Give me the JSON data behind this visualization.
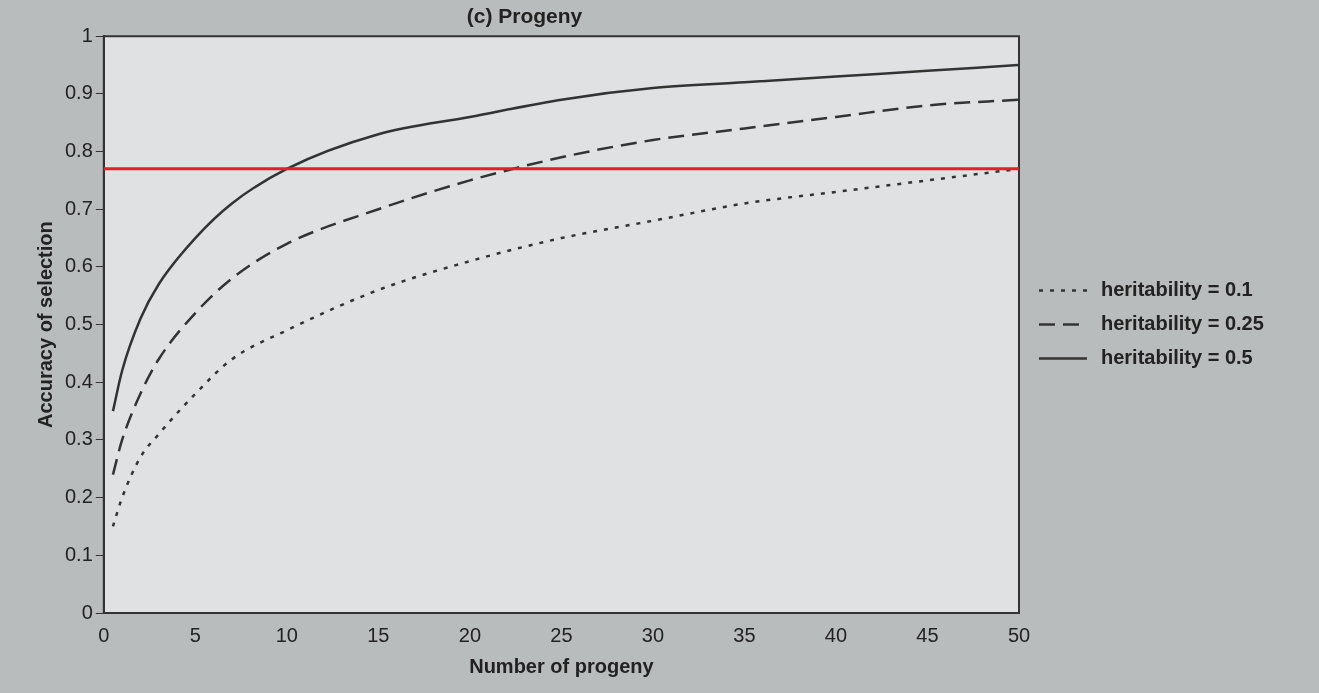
{
  "chart_data": {
    "type": "line",
    "title": "(c) Progeny",
    "xlabel": "Number of progeny",
    "ylabel": "Accuracy of selection",
    "xlim": [
      0,
      50
    ],
    "xticks": [
      0,
      5,
      10,
      15,
      20,
      25,
      30,
      35,
      40,
      45,
      50
    ],
    "ylim": [
      0,
      1
    ],
    "yticks": [
      0,
      0.1,
      0.2,
      0.3,
      0.4,
      0.5,
      0.6,
      0.7,
      0.8,
      0.9,
      1
    ],
    "grid": false,
    "legend": "right",
    "marker": "none",
    "series": [
      {
        "name": "heritability = 0.1",
        "color": "#333333",
        "line_style": "dotted",
        "x": [
          0.5,
          1,
          2,
          3,
          5,
          7,
          10,
          15,
          20,
          25,
          30,
          35,
          40,
          45,
          50
        ],
        "values": [
          0.15,
          0.2,
          0.27,
          0.31,
          0.38,
          0.44,
          0.49,
          0.56,
          0.61,
          0.65,
          0.68,
          0.71,
          0.73,
          0.75,
          0.77
        ]
      },
      {
        "name": "heritability = 0.25",
        "color": "#333333",
        "line_style": "dashed",
        "x": [
          0.5,
          1,
          2,
          3,
          5,
          7,
          10,
          15,
          20,
          25,
          30,
          35,
          40,
          45,
          50
        ],
        "values": [
          0.24,
          0.3,
          0.38,
          0.44,
          0.52,
          0.58,
          0.64,
          0.7,
          0.75,
          0.79,
          0.82,
          0.84,
          0.86,
          0.88,
          0.89
        ]
      },
      {
        "name": "heritability = 0.5",
        "color": "#333333",
        "line_style": "solid",
        "x": [
          0.5,
          1,
          2,
          3,
          5,
          7,
          10,
          15,
          20,
          25,
          30,
          35,
          40,
          45,
          50
        ],
        "values": [
          0.35,
          0.42,
          0.51,
          0.57,
          0.65,
          0.71,
          0.77,
          0.83,
          0.86,
          0.89,
          0.91,
          0.92,
          0.93,
          0.94,
          0.95
        ]
      }
    ],
    "ref_lines": [
      {
        "axis": "y",
        "value": 0.77,
        "color": "#e3202c"
      }
    ]
  }
}
